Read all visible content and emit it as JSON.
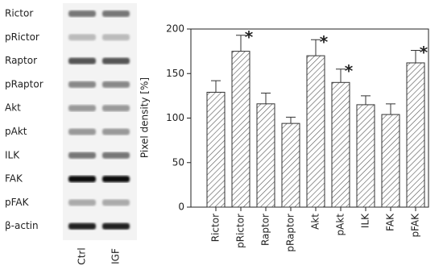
{
  "blot": {
    "rows": [
      "Rictor",
      "pRictor",
      "Raptor",
      "pRaptor",
      "Akt",
      "pAkt",
      "ILK",
      "FAK",
      "pFAK",
      "β-actin"
    ],
    "lanes": [
      "Ctrl",
      "IGF"
    ]
  },
  "chart_data": {
    "type": "bar",
    "y_label": "Pixel density [%]",
    "categories": [
      "Rictor",
      "pRictor",
      "Raptor",
      "pRaptor",
      "Akt",
      "pAkt",
      "ILK",
      "FAK",
      "pFAK"
    ],
    "values": [
      129,
      175,
      116,
      94,
      170,
      140,
      115,
      104,
      162
    ],
    "errors": [
      13,
      18,
      12,
      7,
      18,
      15,
      10,
      12,
      14
    ],
    "annotations": [
      {
        "text": "*",
        "category": "pRictor"
      },
      {
        "text": "*",
        "category": "Akt"
      },
      {
        "text": "*",
        "category": "pAkt"
      },
      {
        "text": "*",
        "category": "pFAK"
      }
    ],
    "ylim": [
      0,
      200
    ],
    "yticks": [
      0,
      50,
      100,
      150,
      200
    ],
    "color": "#ffffff",
    "hatch": true
  }
}
